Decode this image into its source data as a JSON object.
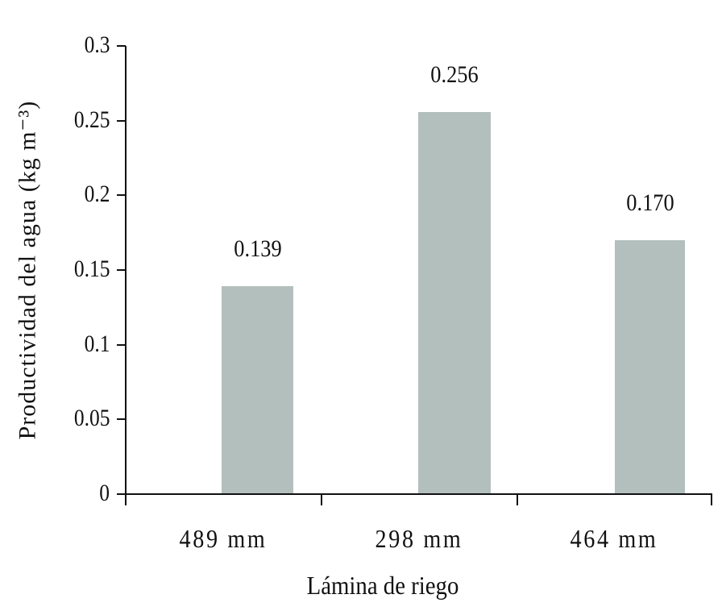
{
  "chart_data": {
    "type": "bar",
    "title": "",
    "xlabel": "Lámina de riego",
    "ylabel": "Productividad del agua (kg m⁻³)",
    "categories": [
      "489 mm",
      "298 mm",
      "464 mm"
    ],
    "values": [
      0.139,
      0.256,
      0.17
    ],
    "data_labels": [
      "0.139",
      "0.256",
      "0.170"
    ],
    "ylim": [
      0,
      0.3
    ],
    "yticks": [
      "0",
      "0.05",
      "0.1",
      "0.15",
      "0.2",
      "0.25",
      "0.3"
    ],
    "grid": false,
    "legend": null,
    "bar_color": "#b3bfbd"
  }
}
